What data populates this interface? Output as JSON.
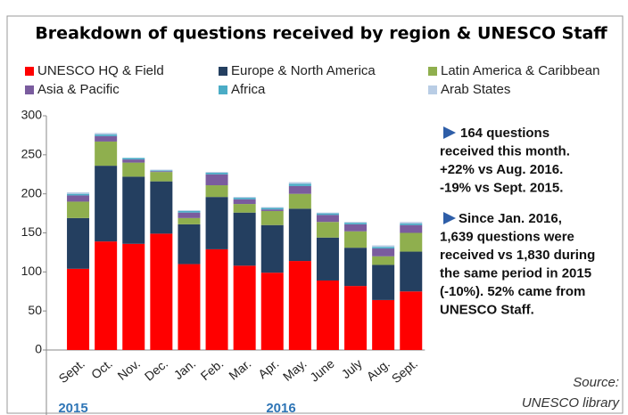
{
  "chart_data": {
    "type": "stacked_bar",
    "title": "Breakdown of questions received by region & UNESCO Staff",
    "categories": [
      "Sept.",
      "Oct.",
      "Nov.",
      "Dec.",
      "Jan.",
      "Feb.",
      "Mar.",
      "Apr.",
      "May.",
      "June",
      "July",
      "Aug.",
      "Sept."
    ],
    "year_labels": [
      "2015",
      "2016"
    ],
    "series": [
      {
        "name": "UNESCO HQ & Field",
        "color": "#ff0000",
        "values": [
          104,
          139,
          136,
          149,
          110,
          129,
          108,
          99,
          114,
          89,
          82,
          64,
          75
        ]
      },
      {
        "name": "Europe & North America",
        "color": "#243f60",
        "values": [
          65,
          97,
          86,
          67,
          51,
          67,
          68,
          61,
          67,
          55,
          49,
          45,
          51
        ]
      },
      {
        "name": "Latin America & Caribbean",
        "color": "#8faf4e",
        "values": [
          21,
          31,
          18,
          12,
          8,
          15,
          11,
          18,
          19,
          20,
          21,
          11,
          24
        ]
      },
      {
        "name": "Asia & Pacific",
        "color": "#7a5c9e",
        "values": [
          8,
          7,
          4,
          1,
          7,
          14,
          6,
          2,
          10,
          9,
          9,
          10,
          10
        ]
      },
      {
        "name": "Africa",
        "color": "#4bacc6",
        "values": [
          2,
          2,
          2,
          1,
          2,
          2,
          2,
          2,
          3,
          2,
          2,
          2,
          2
        ]
      },
      {
        "name": "Arab States",
        "color": "#b9cde5",
        "values": [
          2,
          2,
          0,
          1,
          1,
          1,
          1,
          1,
          2,
          1,
          1,
          2,
          2
        ]
      }
    ],
    "ylim": [
      0,
      300
    ],
    "yticks": [
      0,
      50,
      100,
      150,
      200,
      250,
      300
    ],
    "annotations": [
      [
        "164 questions",
        "received this month.",
        "+22% vs Aug. 2016.",
        "-19% vs Sept. 2015."
      ],
      [
        "Since Jan. 2016,",
        "1,639 questions were",
        "received vs 1,830 during",
        "the same period in 2015",
        "(-10%). 52% came from",
        "UNESCO Staff."
      ]
    ],
    "source": [
      "Source:",
      "UNESCO library"
    ]
  }
}
